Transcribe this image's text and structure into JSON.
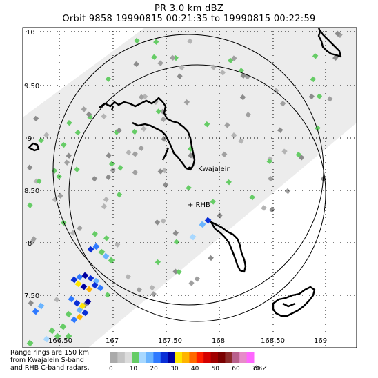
{
  "header": {
    "title": "PR  3.0 km dBZ",
    "subtitle": "Orbit 9858 19990815 00:21:35 to 19990815 00:22:59"
  },
  "map": {
    "lat_ticks": [
      "10",
      "9.50",
      "9",
      "8.50",
      "8",
      "7.50"
    ],
    "lon_ticks": [
      "166.50",
      "167",
      "167.50",
      "168",
      "168.50",
      "169"
    ],
    "places": [
      {
        "id": "kwajalein",
        "label": "Kwajalein",
        "lon": 168.0,
        "lat": 8.7
      },
      {
        "id": "rhb",
        "label": "+ RHB",
        "lon": 167.7,
        "lat": 8.45
      }
    ],
    "range_rings": [
      {
        "id": "kwajalein-ring",
        "center": "kwajalein",
        "radius_km": 150
      },
      {
        "id": "rhb-ring",
        "center": "rhb",
        "radius_km": 150
      }
    ]
  },
  "note": [
    "Range rings are 150 km",
    "from Kwajalein S-band",
    "and RHB C-band radars."
  ],
  "colorbar": {
    "tick_labels": [
      "0",
      "10",
      "20",
      "30",
      "40",
      "50",
      "60",
      "70"
    ],
    "unit": "dBZ",
    "colors": [
      "#aaaaaa",
      "#c4c4c4",
      "#dcdcdc",
      "#66cc66",
      "#a8d8ff",
      "#6ab4ff",
      "#2f7aff",
      "#0a2fd6",
      "#0000a0",
      "#ffe600",
      "#ffb400",
      "#ff6a00",
      "#ff1e00",
      "#d40000",
      "#a00000",
      "#7a0000",
      "#8c2a2a",
      "#b8608c",
      "#e68cc8",
      "#ff66ff"
    ]
  },
  "colors": {
    "swath": "#ececec",
    "ring": "#000000",
    "coast": "#000000",
    "grid": "#000000"
  }
}
